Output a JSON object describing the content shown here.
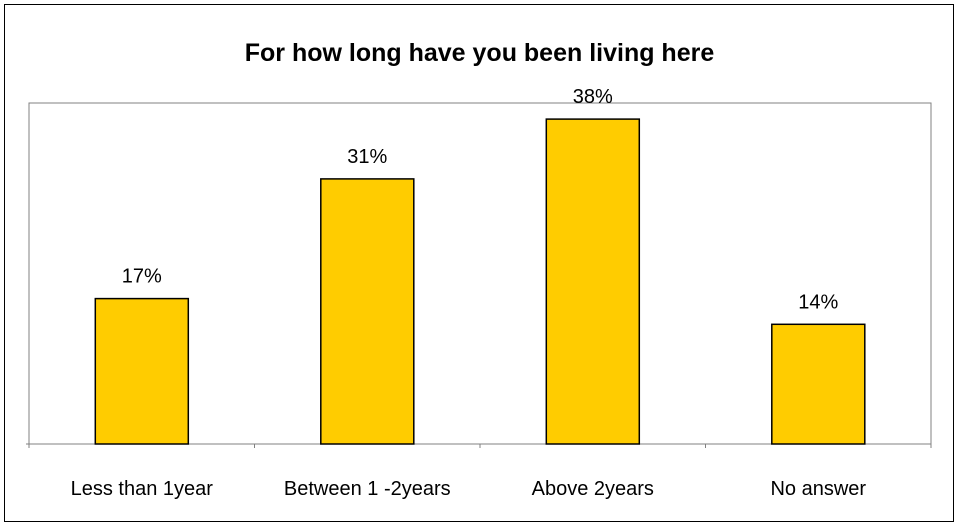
{
  "chart_data": {
    "type": "bar",
    "title": "For how long have you been living here",
    "categories": [
      "Less than 1year",
      "Between 1 -2years",
      "Above 2years",
      "No answer"
    ],
    "values": [
      17,
      31,
      38,
      14
    ],
    "data_labels": [
      "17%",
      "31%",
      "38%",
      "14%"
    ],
    "xlabel": "",
    "ylabel": "",
    "ylim": [
      0,
      40
    ],
    "grid": false,
    "legend": "none",
    "bar_color": "#FFCC00",
    "bar_outline": "#000000",
    "plot_border": "#808080"
  }
}
